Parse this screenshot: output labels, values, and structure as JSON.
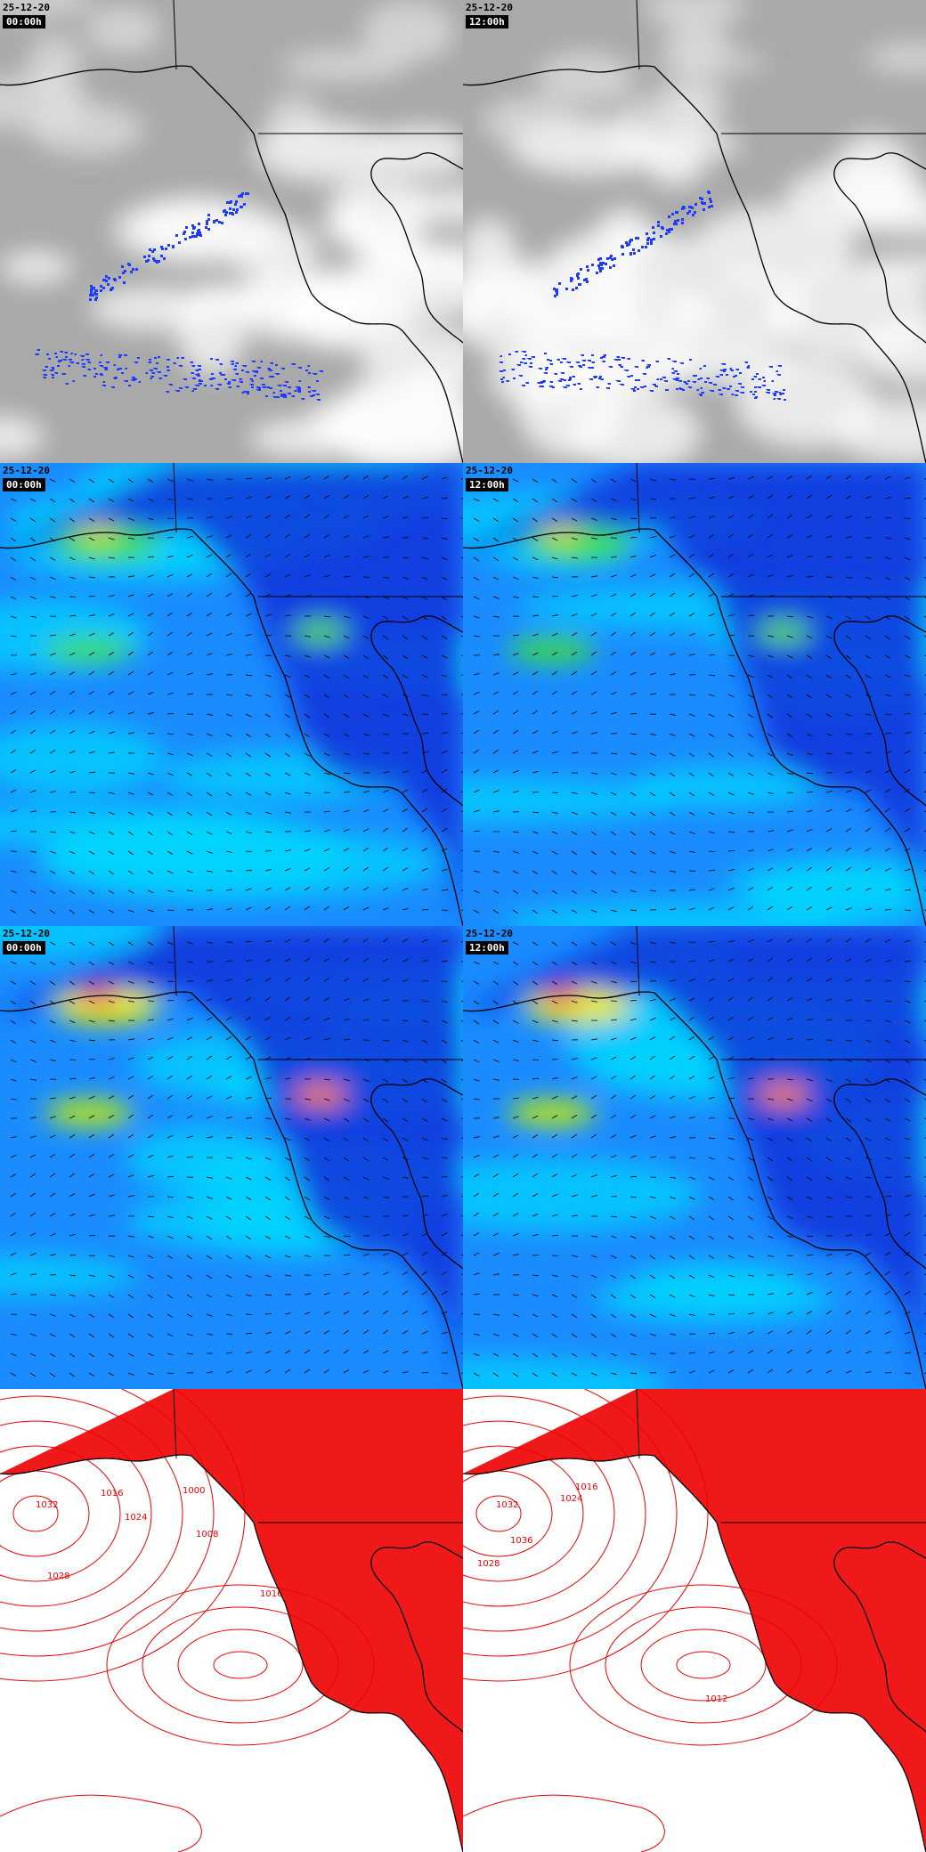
{
  "panels": [
    {
      "date": "25-12-20",
      "time": "00:00h"
    },
    {
      "date": "25-12-20",
      "time": "12:00h"
    },
    {
      "date": "25-12-20",
      "time": "00:00h"
    },
    {
      "date": "25-12-20",
      "time": "12:00h"
    },
    {
      "date": "25-12-20",
      "time": "00:00h"
    },
    {
      "date": "25-12-20",
      "time": "12:00h"
    }
  ],
  "pressure": [
    {
      "labels": [
        "1032",
        "1016",
        "1024",
        "1000",
        "1008",
        "1028",
        "1016"
      ]
    },
    {
      "labels": [
        "1032",
        "1016",
        "1024",
        "1036",
        "1028",
        "1012"
      ]
    }
  ]
}
